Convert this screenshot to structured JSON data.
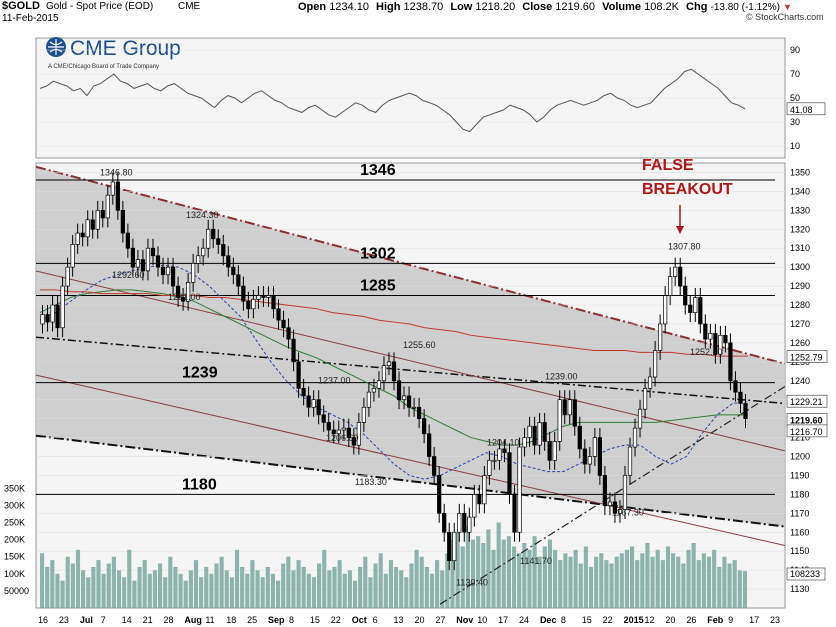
{
  "header": {
    "symbol": "$GOLD",
    "name": "Gold - Spot Price (EOD)",
    "exchange": "CME",
    "date": "11-Feb-2015",
    "open_label": "Open",
    "open": "1234.10",
    "high_label": "High",
    "high": "1238.70",
    "low_label": "Low",
    "low": "1218.20",
    "close_label": "Close",
    "close": "1219.60",
    "volume_label": "Volume",
    "volume": "108.2K",
    "chg_label": "Chg",
    "chg": "-13.80 (-1.12%)",
    "credit": "© StockCharts.com"
  },
  "logo": {
    "brand": "CME Group",
    "tagline": "A CME/Chicago Board of Trade Company"
  },
  "annotations": {
    "false_breakout_line1": "FALSE",
    "false_breakout_line2": "BREAKOUT"
  },
  "colors": {
    "channel_fill": "#c8c8c8",
    "channel_upper": "#8b2f2f",
    "candle": "#000000",
    "ma_short": "#2b3fb0",
    "ma_mid": "#2e7d32",
    "ma_long": "#c0392b",
    "volume": "#7aa89c",
    "annotation": "#b01818",
    "rsi_fill": "#a8a8a8"
  },
  "chart_data": [
    {
      "type": "line",
      "panel": "rsi",
      "ylim": [
        0,
        100
      ],
      "yticks": [
        "90",
        "70",
        "50",
        "30",
        "10"
      ],
      "last_value_label": "41.08",
      "series": [
        {
          "values": [
            58,
            60,
            64,
            62,
            60,
            56,
            58,
            52,
            60,
            62,
            66,
            70,
            64,
            62,
            58,
            60,
            62,
            58,
            56,
            60,
            62,
            58,
            54,
            52,
            50,
            46,
            42,
            48,
            52,
            50,
            46,
            50,
            54,
            56,
            52,
            48,
            46,
            42,
            40,
            38,
            42,
            44,
            40,
            36,
            34,
            38,
            42,
            46,
            44,
            40,
            38,
            44,
            48,
            50,
            52,
            54,
            52,
            48,
            46,
            44,
            40,
            36,
            30,
            24,
            22,
            28,
            34,
            36,
            38,
            40,
            44,
            42,
            40,
            36,
            30,
            34,
            40,
            44,
            46,
            48,
            46,
            44,
            46,
            48,
            52,
            54,
            50,
            48,
            44,
            42,
            44,
            46,
            52,
            58,
            62,
            66,
            72,
            74,
            70,
            66,
            62,
            58,
            52,
            46,
            44,
            41
          ]
        }
      ]
    },
    {
      "type": "candlestick",
      "panel": "price",
      "x_tick_labels": [
        "16",
        "23",
        "Jul",
        "7",
        "14",
        "21",
        "28",
        "Aug",
        "11",
        "18",
        "25",
        "Sep",
        "8",
        "15",
        "22",
        "Oct",
        "6",
        "13",
        "20",
        "27",
        "Nov",
        "10",
        "17",
        "24",
        "Dec",
        "8",
        "15",
        "22",
        "2015",
        "12",
        "20",
        "26",
        "Feb",
        "9",
        "17",
        "23"
      ],
      "ylim": [
        1120,
        1355
      ],
      "yticks": [
        1130,
        1140,
        1150,
        1160,
        1170,
        1180,
        1190,
        1200,
        1210,
        1220,
        1230,
        1240,
        1250,
        1260,
        1270,
        1280,
        1290,
        1300,
        1310,
        1320,
        1330,
        1340,
        1350
      ],
      "series": [
        {
          "name": "Gold",
          "close": [
            1275,
            1271,
            1280,
            1268,
            1290,
            1300,
            1312,
            1318,
            1316,
            1325,
            1320,
            1330,
            1326,
            1338,
            1345,
            1330,
            1318,
            1310,
            1300,
            1304,
            1298,
            1310,
            1306,
            1300,
            1296,
            1300,
            1290,
            1284,
            1282,
            1292,
            1302,
            1306,
            1310,
            1320,
            1315,
            1312,
            1306,
            1300,
            1296,
            1290,
            1282,
            1278,
            1283,
            1285,
            1284,
            1285,
            1278,
            1272,
            1268,
            1262,
            1250,
            1236,
            1232,
            1226,
            1230,
            1222,
            1218,
            1214,
            1212,
            1214,
            1215,
            1210,
            1206,
            1218,
            1226,
            1234,
            1236,
            1240,
            1248,
            1250,
            1240,
            1230,
            1232,
            1226,
            1226,
            1220,
            1212,
            1200,
            1190,
            1170,
            1160,
            1145,
            1160,
            1170,
            1160,
            1168,
            1180,
            1175,
            1190,
            1198,
            1198,
            1204,
            1202,
            1180,
            1160,
            1205,
            1210,
            1216,
            1206,
            1218,
            1208,
            1198,
            1208,
            1230,
            1222,
            1230,
            1216,
            1204,
            1196,
            1200,
            1210,
            1190,
            1174,
            1176,
            1170,
            1172,
            1190,
            1205,
            1215,
            1225,
            1236,
            1242,
            1256,
            1270,
            1285,
            1295,
            1300,
            1290,
            1280,
            1276,
            1284,
            1270,
            1262,
            1265,
            1254,
            1264,
            1260,
            1240,
            1234,
            1228,
            1220
          ],
          "open": [
            1270,
            1275,
            1271,
            1280,
            1268,
            1290,
            1300,
            1312,
            1318,
            1316,
            1325,
            1320,
            1330,
            1326,
            1338,
            1345,
            1330,
            1318,
            1310,
            1300,
            1304,
            1298,
            1310,
            1306,
            1300,
            1296,
            1300,
            1290,
            1284,
            1282,
            1292,
            1302,
            1306,
            1310,
            1320,
            1315,
            1312,
            1306,
            1300,
            1296,
            1290,
            1282,
            1278,
            1283,
            1285,
            1284,
            1285,
            1278,
            1272,
            1268,
            1262,
            1250,
            1236,
            1232,
            1226,
            1230,
            1222,
            1218,
            1214,
            1212,
            1214,
            1215,
            1210,
            1206,
            1218,
            1226,
            1234,
            1236,
            1240,
            1248,
            1250,
            1240,
            1230,
            1232,
            1226,
            1226,
            1220,
            1212,
            1200,
            1190,
            1170,
            1160,
            1145,
            1160,
            1170,
            1160,
            1168,
            1180,
            1175,
            1190,
            1198,
            1198,
            1204,
            1202,
            1180,
            1160,
            1205,
            1210,
            1216,
            1206,
            1218,
            1208,
            1198,
            1208,
            1230,
            1222,
            1230,
            1216,
            1204,
            1196,
            1200,
            1210,
            1190,
            1174,
            1176,
            1170,
            1172,
            1190,
            1205,
            1215,
            1225,
            1236,
            1242,
            1256,
            1270,
            1285,
            1295,
            1300,
            1290,
            1280,
            1276,
            1284,
            1270,
            1262,
            1265,
            1254,
            1264,
            1260,
            1240,
            1234,
            1228
          ]
        }
      ],
      "overlays": [
        {
          "name": "MA-short",
          "values": [
            1272,
            1276,
            1282,
            1288,
            1293,
            1296,
            1298,
            1300,
            1301,
            1300,
            1296,
            1290,
            1282,
            1274,
            1262,
            1250,
            1240,
            1232,
            1226,
            1222,
            1218,
            1212,
            1204,
            1196,
            1190,
            1188,
            1190,
            1194,
            1198,
            1202,
            1200,
            1196,
            1194,
            1192,
            1192,
            1196,
            1200,
            1204,
            1206,
            1206,
            1200,
            1196,
            1200,
            1212,
            1222,
            1228,
            1229
          ]
        },
        {
          "name": "MA-mid",
          "values": [
            1276,
            1280,
            1284,
            1286,
            1287,
            1288,
            1288,
            1287,
            1286,
            1284,
            1282,
            1278,
            1274,
            1270,
            1266,
            1262,
            1258,
            1255,
            1252,
            1248,
            1244,
            1240,
            1236,
            1232,
            1226,
            1222,
            1218,
            1214,
            1210,
            1208,
            1206,
            1206,
            1208,
            1212,
            1216,
            1218,
            1218,
            1218,
            1218,
            1218,
            1218,
            1219,
            1220,
            1221,
            1222,
            1222,
            1222
          ]
        },
        {
          "name": "MA-long",
          "values": [
            1288,
            1288,
            1287,
            1287,
            1286,
            1286,
            1286,
            1286,
            1285,
            1285,
            1285,
            1284,
            1284,
            1283,
            1282,
            1281,
            1280,
            1279,
            1278,
            1276,
            1275,
            1274,
            1272,
            1271,
            1270,
            1268,
            1267,
            1266,
            1264,
            1263,
            1262,
            1261,
            1260,
            1259,
            1258,
            1257,
            1256,
            1256,
            1256,
            1255,
            1255,
            1255,
            1254,
            1254,
            1253,
            1253,
            1253
          ]
        }
      ],
      "horizontal_levels": [
        {
          "value": 1346,
          "label": "1346"
        },
        {
          "value": 1302,
          "label": "1302"
        },
        {
          "value": 1285,
          "label": "1285"
        },
        {
          "value": 1239,
          "label": "1239"
        },
        {
          "value": 1180,
          "label": "1180"
        }
      ],
      "point_labels": [
        {
          "text": "1346.80",
          "value": 1346.8
        },
        {
          "text": "1324.30",
          "value": 1324.3
        },
        {
          "text": "1292.60",
          "value": 1292.6
        },
        {
          "text": "1281.00",
          "value": 1281.0
        },
        {
          "text": "1255.60",
          "value": 1255.6
        },
        {
          "text": "1237.00",
          "value": 1237.0
        },
        {
          "text": "1206.60",
          "value": 1206.6
        },
        {
          "text": "1183.30",
          "value": 1183.3
        },
        {
          "text": "1130.40",
          "value": 1130.4
        },
        {
          "text": "1141.70",
          "value": 1141.7
        },
        {
          "text": "1204.10",
          "value": 1204.1
        },
        {
          "text": "1239.00",
          "value": 1239.0
        },
        {
          "text": "1167.30",
          "value": 1167.3
        },
        {
          "text": "1307.80",
          "value": 1307.8
        },
        {
          "text": "1252.10",
          "value": 1252.1
        }
      ],
      "right_axis_labels": [
        "1252.79",
        "1229.21",
        "1219.60",
        "1216.70"
      ]
    },
    {
      "type": "bar",
      "panel": "volume",
      "yticks": [
        "350K",
        "300K",
        "250K",
        "200K",
        "150K",
        "100K",
        "50000"
      ],
      "ylim": [
        0,
        380000
      ],
      "last_value_label": "108233",
      "values": [
        160,
        120,
        140,
        100,
        80,
        150,
        130,
        170,
        110,
        90,
        120,
        140,
        100,
        130,
        150,
        110,
        90,
        170,
        80,
        120,
        140,
        100,
        110,
        130,
        90,
        150,
        120,
        100,
        80,
        110,
        140,
        90,
        120,
        100,
        130,
        150,
        110,
        90,
        170,
        120,
        100,
        140,
        110,
        90,
        120,
        100,
        80,
        130,
        150,
        110,
        140,
        120,
        100,
        90,
        130,
        170,
        110,
        120,
        140,
        100,
        110,
        80,
        120,
        150,
        90,
        130,
        160,
        100,
        140,
        120,
        110,
        90,
        130,
        170,
        150,
        120,
        100,
        140,
        110,
        160,
        200,
        220,
        180,
        240,
        200,
        210,
        190,
        230,
        170,
        250,
        200,
        210,
        180,
        160,
        190,
        170,
        210,
        150,
        180,
        200,
        170,
        140,
        160,
        150,
        170,
        130,
        180,
        120,
        150,
        160,
        140,
        130,
        150,
        160,
        170,
        180,
        140,
        160,
        190,
        150,
        170,
        140,
        180,
        160,
        150,
        130,
        170,
        190,
        140,
        160,
        150,
        170,
        120,
        150,
        130,
        140,
        110,
        108
      ]
    }
  ]
}
